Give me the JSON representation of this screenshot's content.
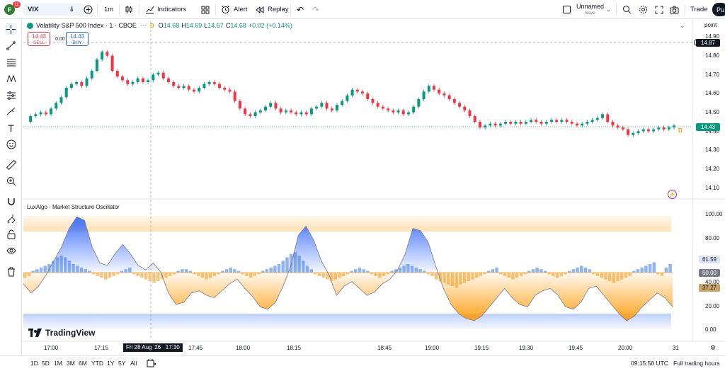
{
  "toolbar": {
    "avatar_letter": "F",
    "notifications": "11",
    "symbol": "VIX",
    "interval": "1m",
    "indicators_label": "Indicators",
    "alert_label": "Alert",
    "replay_label": "Replay",
    "layout_name": "Unnamed",
    "layout_status": "Save",
    "trade_label": "Trade",
    "publish_label": "Pu"
  },
  "legend": {
    "title": "Volatility S&P 500 Index · 1 · CBOE",
    "badge": "D",
    "open_label": "O",
    "open": "14.68",
    "high_label": "H",
    "high": "14.69",
    "low_label": "L",
    "low": "14.67",
    "close_label": "C",
    "close": "14.68",
    "change": "+0.02 (+0.14%)"
  },
  "trade": {
    "sell_price": "14.43",
    "sell_label": "SELL",
    "spread": "0.00",
    "buy_price": "14.43",
    "buy_label": "BUY"
  },
  "price_axis": {
    "unit_label": "point",
    "labels": [
      "14.90",
      "14.80",
      "14.70",
      "14.60",
      "14.50",
      "14.40",
      "14.30",
      "14.20",
      "14.10"
    ],
    "crosshair_price": "14.87",
    "last_price": "14.43",
    "marker": "D"
  },
  "oscillator": {
    "title": "LuxAlgo · Market Structure Oscillator",
    "labels": [
      "100.00",
      "80.00",
      "40.00",
      "20.00",
      "0.00"
    ],
    "value_blue": "61.59",
    "value_mid": "50.00",
    "value_orange": "37.27"
  },
  "watermark": "TradingView",
  "time_axis": {
    "labels": [
      "17:00",
      "17:15",
      "17:45",
      "18:00",
      "18:15",
      "18:45",
      "19:00",
      "19:15",
      "19:30",
      "19:45",
      "20:00",
      "31"
    ],
    "crosshair_time": "Fri 28 Aug '26   17:30"
  },
  "bottom": {
    "ranges": [
      "1D",
      "5D",
      "1M",
      "3M",
      "6M",
      "YTD",
      "1Y",
      "5Y",
      "All"
    ],
    "clock": "09:15:58 UTC",
    "session": "Full trading hours"
  },
  "colors": {
    "up": "#089981",
    "down": "#f23645",
    "blue": "#2962ff",
    "orange": "#ff9800"
  }
}
